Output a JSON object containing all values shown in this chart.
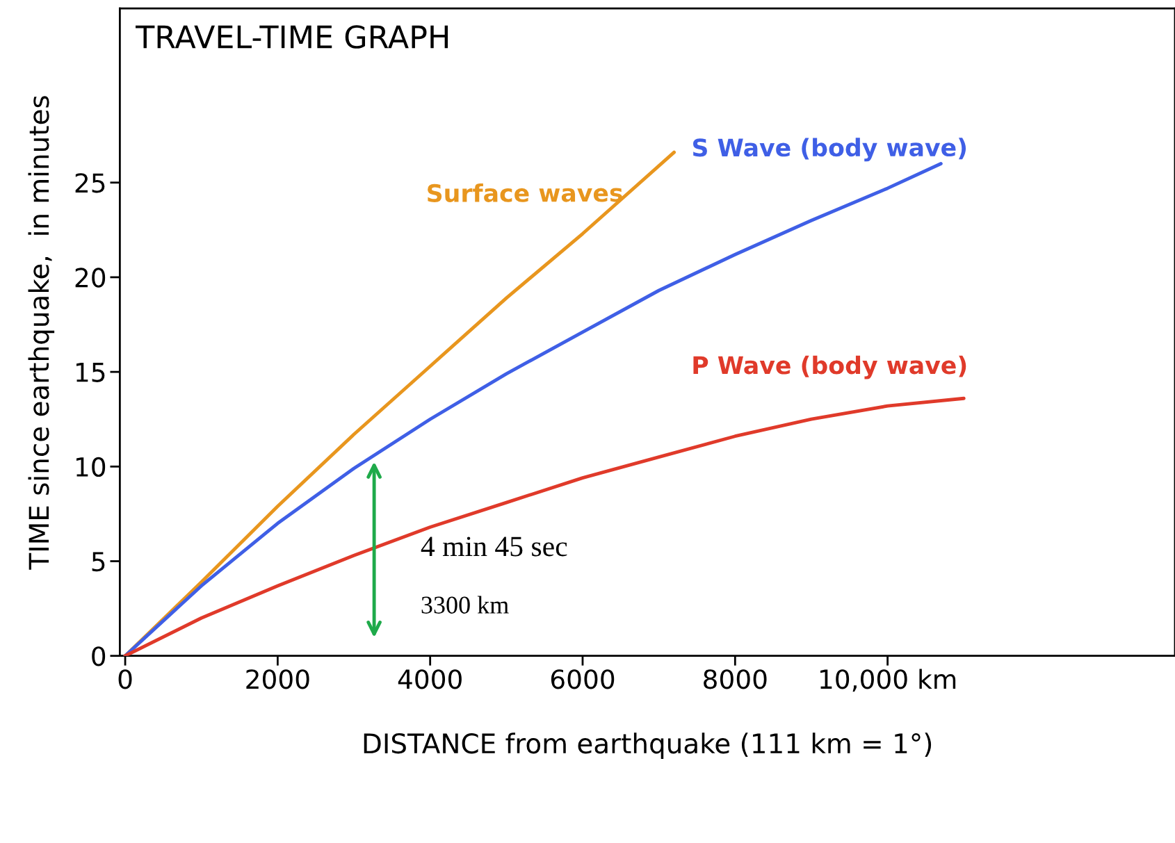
{
  "chart_data": {
    "type": "line",
    "title": "TRAVEL-TIME GRAPH",
    "xlabel": "DISTANCE from earthquake (111 km = 1°)",
    "ylabel": "TIME since earthquake,  in minutes",
    "xlim": [
      -70,
      13770
    ],
    "ylim": [
      0,
      34.2
    ],
    "xticks": [
      0,
      2000,
      4000,
      6000,
      8000,
      {
        "value": 10000,
        "label": "10,000 km"
      }
    ],
    "yticks": [
      0,
      5,
      10,
      15,
      20,
      25
    ],
    "grid": false,
    "legend": false,
    "line_style": "solid",
    "marker": "none",
    "series": [
      {
        "name": "Surface waves",
        "color": "#e8961e",
        "x": [
          0,
          1000,
          2000,
          3000,
          4000,
          5000,
          6000,
          7200
        ],
        "values": [
          0,
          3.9,
          7.9,
          11.7,
          15.3,
          18.9,
          22.3,
          26.6
        ]
      },
      {
        "name": "S Wave (body wave)",
        "color": "#3f5fe6",
        "x": [
          0,
          1000,
          2000,
          3000,
          4000,
          5000,
          6000,
          7000,
          8000,
          9000,
          10000,
          10700
        ],
        "values": [
          0,
          3.7,
          7.0,
          9.9,
          12.5,
          14.9,
          17.1,
          19.3,
          21.2,
          23.0,
          24.7,
          26.0
        ]
      },
      {
        "name": "P Wave (body wave)",
        "color": "#e03a2a",
        "x": [
          0,
          1000,
          2000,
          3000,
          4000,
          5000,
          6000,
          7000,
          8000,
          9000,
          10000,
          11000
        ],
        "values": [
          0,
          2.0,
          3.7,
          5.3,
          6.8,
          8.1,
          9.4,
          10.5,
          11.6,
          12.5,
          13.2,
          13.6
        ]
      }
    ],
    "annotations": [
      "4 min 45 sec",
      "3300 km"
    ]
  }
}
